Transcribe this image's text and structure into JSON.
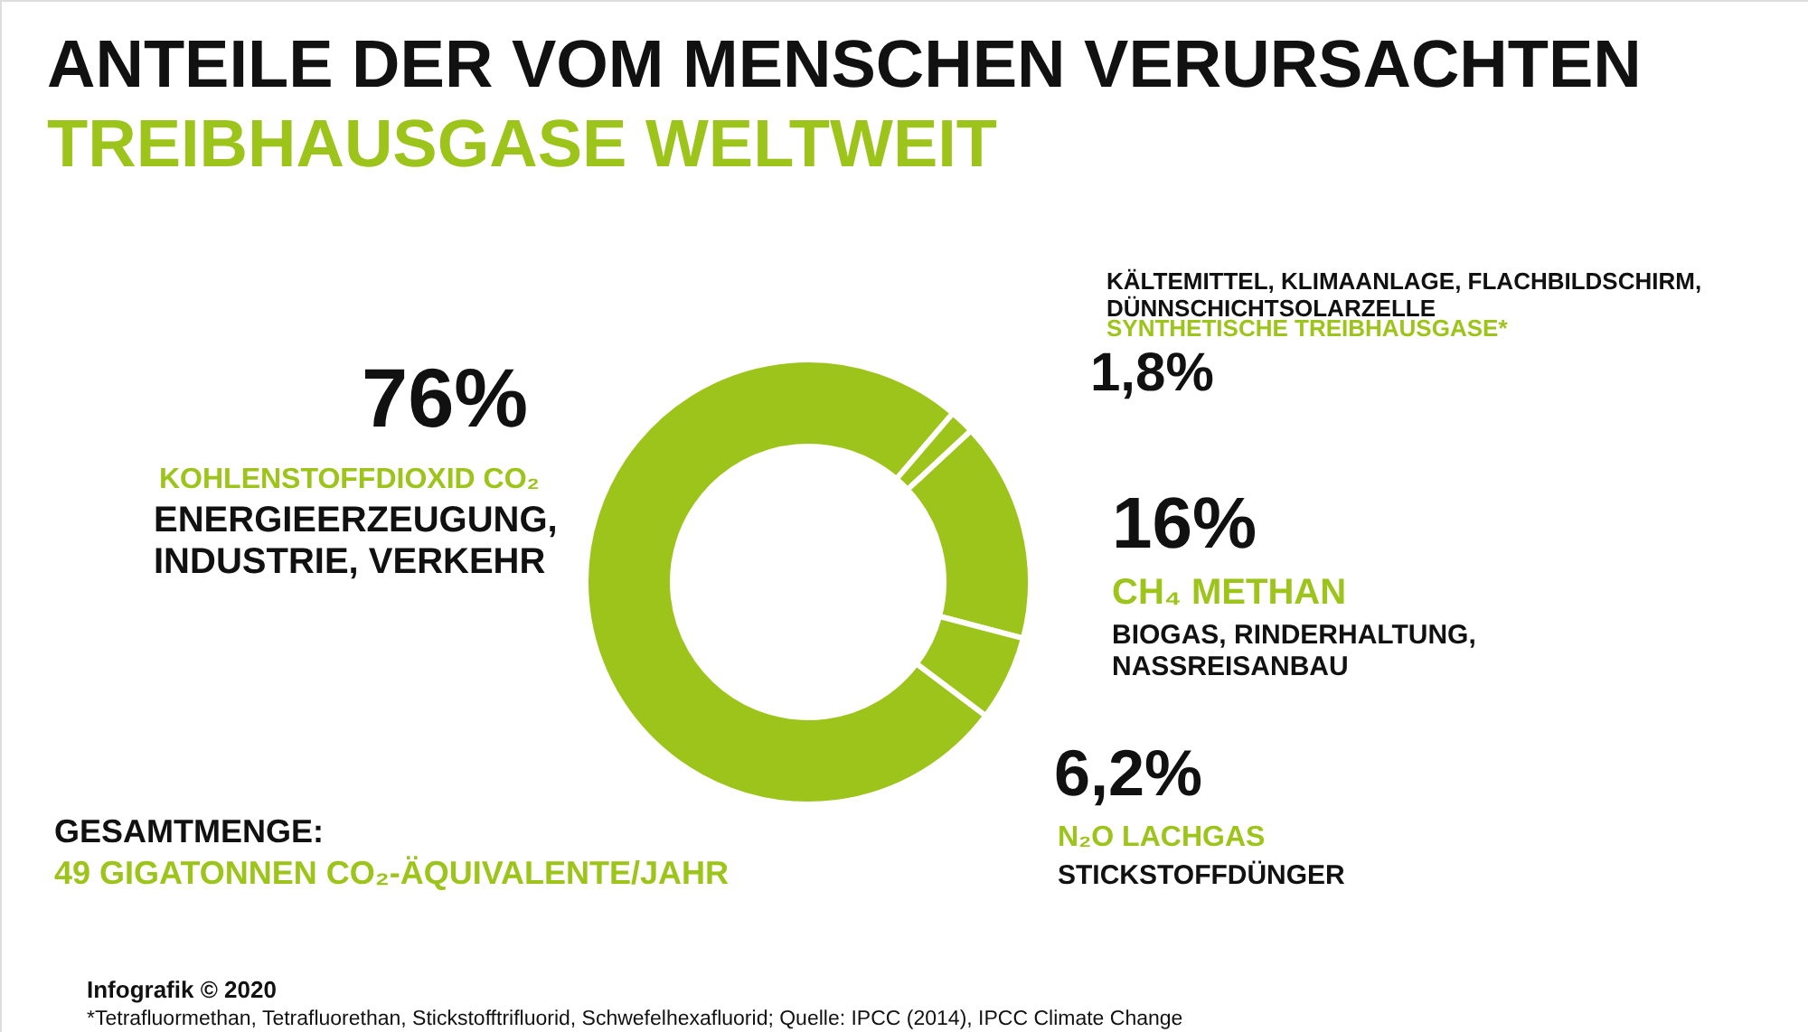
{
  "chart_data": {
    "type": "donut",
    "title": "ANTEILE DER VOM MENSCHEN VERURSACHTEN",
    "subtitle": "TREIBHAUSGASE WELTWEIT",
    "categories": [
      "KOHLENSTOFFDIOXID CO₂",
      "SYNTHETISCHE TREIBHAUSGASE*",
      "CH₄ METHAN",
      "N₂O LACHGAS"
    ],
    "values": [
      76,
      1.8,
      16,
      6.2
    ],
    "value_labels": [
      "76%",
      "1,8%",
      "16%",
      "6,2%"
    ],
    "colors": [
      "#9dc41a",
      "#9dc41a",
      "#9dc41a",
      "#9dc41a"
    ],
    "annotations": [
      "KÄLTEMITTEL, KLIMAANLAGE, FLACHBILDSCHIRM,\nDÜNNSCHICHTSOLARZELLE",
      "ENERGIEERZEUGUNG,\nINDUSTRIE, VERKEHR",
      "BIOGAS, RINDERHALTUNG,\nNASSREISANBAU",
      "STICKSTOFFDÜNGER",
      "GESAMTMENGE:",
      "49 GIGATONNEN CO₂-ÄQUIVALENTE/JAHR",
      "Infografik © 2020",
      "*Tetrafluormethan, Tetrafluorethan, Stickstofftrifluorid, Schwefelhexafluorid; Quelle: IPCC (2014), IPCC Climate Change"
    ]
  }
}
